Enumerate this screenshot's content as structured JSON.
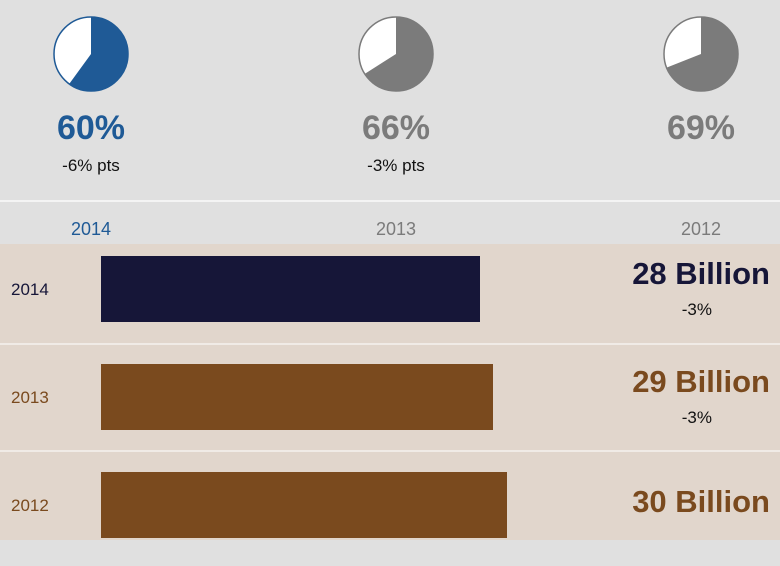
{
  "colors": {
    "highlight": "#1f5a96",
    "muted": "#7b7b7b",
    "bar_current": "#161638",
    "bar_prior": "#7a4a1e"
  },
  "pies": [
    {
      "year": "2014",
      "value_label": "60%",
      "value": 60,
      "delta": "-6% pts",
      "highlight": true
    },
    {
      "year": "2013",
      "value_label": "66%",
      "value": 66,
      "delta": "-3% pts",
      "highlight": false
    },
    {
      "year": "2012",
      "value_label": "69%",
      "value": 69,
      "delta": "",
      "highlight": false
    }
  ],
  "chart_data": [
    {
      "type": "pie",
      "categories": [
        "2014",
        "2013",
        "2012"
      ],
      "values": [
        60,
        66,
        69
      ],
      "value_labels": [
        "60%",
        "66%",
        "69%"
      ],
      "changes": [
        "-6% pts",
        "-3% pts",
        ""
      ]
    },
    {
      "type": "bar",
      "orientation": "horizontal",
      "categories": [
        "2014",
        "2013",
        "2012"
      ],
      "values": [
        28,
        29,
        30
      ],
      "value_labels": [
        "28 Billion",
        "29 Billion",
        "30 Billion"
      ],
      "changes": [
        "-3%",
        "-3%",
        ""
      ]
    }
  ]
}
